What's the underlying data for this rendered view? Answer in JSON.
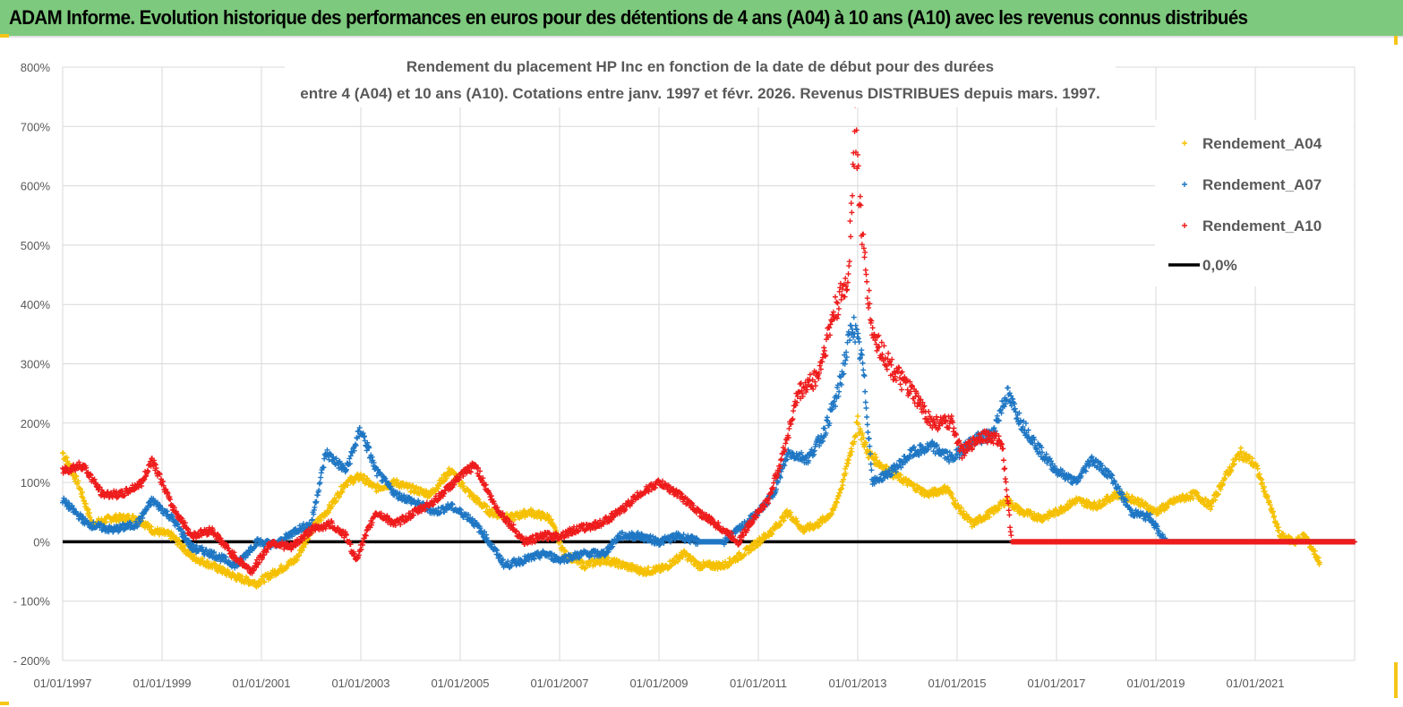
{
  "header": {
    "title": "ADAM Informe. Evolution historique des performances en euros pour des détentions de 4 ans (A04) à 10 ans (A10) avec les revenus connus distribués"
  },
  "chart_data": {
    "type": "scatter",
    "title_line1": "Rendement du placement HP Inc en fonction de la date de début pour des durées",
    "title_line2": "entre 4 (A04) et 10 ans (A10). Cotations entre janv. 1997 et févr. 2026. Revenus DISTRIBUES depuis mars. 1997.",
    "xlabel": "",
    "ylabel": "",
    "xlim": [
      1997,
      2023
    ],
    "ylim": [
      -200,
      800
    ],
    "grid": true,
    "legend": "top-right",
    "x_ticks": [
      "01/01/1997",
      "01/01/1999",
      "01/01/2001",
      "01/01/2003",
      "01/01/2005",
      "01/01/2007",
      "01/01/2009",
      "01/01/2011",
      "01/01/2013",
      "01/01/2015",
      "01/01/2017",
      "01/01/2019",
      "01/01/2021"
    ],
    "y_ticks": [
      "800%",
      "700%",
      "600%",
      "500%",
      "400%",
      "300%",
      "200%",
      "100%",
      "0%",
      "- 100%",
      "- 200%"
    ],
    "series": [
      {
        "name": "Rendement_A04",
        "color": "#f5c000",
        "points": [
          [
            1997.0,
            150
          ],
          [
            1997.3,
            100
          ],
          [
            1997.6,
            30
          ],
          [
            1998.0,
            40
          ],
          [
            1998.5,
            40
          ],
          [
            1998.8,
            20
          ],
          [
            1999.2,
            10
          ],
          [
            1999.6,
            -25
          ],
          [
            2000.0,
            -40
          ],
          [
            2000.5,
            -60
          ],
          [
            2000.9,
            -70
          ],
          [
            2001.3,
            -50
          ],
          [
            2001.7,
            -30
          ],
          [
            2002.0,
            20
          ],
          [
            2002.4,
            60
          ],
          [
            2002.7,
            100
          ],
          [
            2003.0,
            110
          ],
          [
            2003.3,
            90
          ],
          [
            2003.7,
            100
          ],
          [
            2004.0,
            90
          ],
          [
            2004.4,
            80
          ],
          [
            2004.8,
            120
          ],
          [
            2005.2,
            80
          ],
          [
            2005.6,
            50
          ],
          [
            2006.0,
            40
          ],
          [
            2006.4,
            50
          ],
          [
            2006.8,
            40
          ],
          [
            2007.1,
            -20
          ],
          [
            2007.5,
            -40
          ],
          [
            2007.9,
            -30
          ],
          [
            2008.3,
            -40
          ],
          [
            2008.7,
            -50
          ],
          [
            2009.1,
            -45
          ],
          [
            2009.5,
            -20
          ],
          [
            2009.8,
            -40
          ],
          [
            2010.3,
            -40
          ],
          [
            2010.7,
            -20
          ],
          [
            2011.0,
            0
          ],
          [
            2011.3,
            20
          ],
          [
            2011.6,
            50
          ],
          [
            2011.9,
            20
          ],
          [
            2012.2,
            30
          ],
          [
            2012.5,
            50
          ],
          [
            2012.7,
            100
          ],
          [
            2013.0,
            200
          ],
          [
            2013.2,
            150
          ],
          [
            2013.6,
            120
          ],
          [
            2014.0,
            100
          ],
          [
            2014.4,
            80
          ],
          [
            2014.8,
            90
          ],
          [
            2015.0,
            60
          ],
          [
            2015.3,
            30
          ],
          [
            2015.7,
            50
          ],
          [
            2016.0,
            70
          ],
          [
            2016.3,
            50
          ],
          [
            2016.7,
            40
          ],
          [
            2017.0,
            50
          ],
          [
            2017.4,
            70
          ],
          [
            2017.8,
            60
          ],
          [
            2018.2,
            80
          ],
          [
            2018.6,
            70
          ],
          [
            2019.0,
            50
          ],
          [
            2019.4,
            70
          ],
          [
            2019.8,
            80
          ],
          [
            2020.1,
            60
          ],
          [
            2020.4,
            110
          ],
          [
            2020.7,
            150
          ],
          [
            2021.0,
            130
          ],
          [
            2021.3,
            60
          ],
          [
            2021.5,
            10
          ],
          [
            2021.8,
            0
          ],
          [
            2022.0,
            10
          ],
          [
            2022.3,
            -35
          ]
        ]
      },
      {
        "name": "Rendement_A07",
        "color": "#1f77c4",
        "points": [
          [
            1997.0,
            70
          ],
          [
            1997.5,
            30
          ],
          [
            1998.0,
            20
          ],
          [
            1998.5,
            30
          ],
          [
            1998.8,
            70
          ],
          [
            1999.2,
            40
          ],
          [
            1999.6,
            -10
          ],
          [
            2000.0,
            -20
          ],
          [
            2000.5,
            -40
          ],
          [
            2000.9,
            0
          ],
          [
            2001.3,
            -5
          ],
          [
            2001.7,
            20
          ],
          [
            2002.0,
            30
          ],
          [
            2002.3,
            150
          ],
          [
            2002.7,
            120
          ],
          [
            2003.0,
            190
          ],
          [
            2003.3,
            120
          ],
          [
            2003.7,
            80
          ],
          [
            2004.0,
            70
          ],
          [
            2004.5,
            50
          ],
          [
            2004.8,
            60
          ],
          [
            2005.2,
            40
          ],
          [
            2005.5,
            10
          ],
          [
            2005.9,
            -40
          ],
          [
            2006.3,
            -30
          ],
          [
            2006.7,
            -20
          ],
          [
            2007.0,
            -30
          ],
          [
            2007.5,
            -20
          ],
          [
            2007.9,
            -20
          ],
          [
            2008.2,
            10
          ],
          [
            2008.6,
            10
          ],
          [
            2009.0,
            0
          ],
          [
            2009.4,
            10
          ],
          [
            2009.8,
            0
          ],
          [
            2010.3,
            0
          ],
          [
            2010.6,
            20
          ],
          [
            2011.0,
            50
          ],
          [
            2011.3,
            80
          ],
          [
            2011.6,
            150
          ],
          [
            2012.0,
            140
          ],
          [
            2012.3,
            180
          ],
          [
            2012.6,
            250
          ],
          [
            2012.9,
            370
          ],
          [
            2013.1,
            300
          ],
          [
            2013.3,
            100
          ],
          [
            2013.7,
            120
          ],
          [
            2014.1,
            150
          ],
          [
            2014.5,
            160
          ],
          [
            2014.9,
            140
          ],
          [
            2015.3,
            170
          ],
          [
            2015.7,
            180
          ],
          [
            2016.0,
            250
          ],
          [
            2016.3,
            200
          ],
          [
            2016.7,
            150
          ],
          [
            2017.0,
            120
          ],
          [
            2017.4,
            100
          ],
          [
            2017.7,
            140
          ],
          [
            2018.1,
            110
          ],
          [
            2018.5,
            50
          ],
          [
            2018.9,
            40
          ],
          [
            2019.1,
            10
          ],
          [
            2019.2,
            0
          ],
          [
            2023.0,
            0
          ]
        ]
      },
      {
        "name": "Rendement_A10",
        "color": "#ee1c1c",
        "points": [
          [
            1997.0,
            120
          ],
          [
            1997.4,
            130
          ],
          [
            1997.8,
            80
          ],
          [
            1998.2,
            80
          ],
          [
            1998.6,
            100
          ],
          [
            1998.8,
            140
          ],
          [
            1999.2,
            60
          ],
          [
            1999.6,
            10
          ],
          [
            2000.0,
            20
          ],
          [
            2000.4,
            -20
          ],
          [
            2000.8,
            -50
          ],
          [
            2001.2,
            0
          ],
          [
            2001.6,
            -10
          ],
          [
            2002.0,
            20
          ],
          [
            2002.4,
            30
          ],
          [
            2002.7,
            10
          ],
          [
            2002.9,
            -30
          ],
          [
            2003.3,
            50
          ],
          [
            2003.7,
            30
          ],
          [
            2004.1,
            50
          ],
          [
            2004.5,
            70
          ],
          [
            2005.0,
            110
          ],
          [
            2005.3,
            130
          ],
          [
            2005.7,
            60
          ],
          [
            2006.0,
            30
          ],
          [
            2006.3,
            0
          ],
          [
            2006.7,
            10
          ],
          [
            2007.0,
            10
          ],
          [
            2007.3,
            20
          ],
          [
            2007.8,
            30
          ],
          [
            2008.2,
            50
          ],
          [
            2008.6,
            80
          ],
          [
            2009.0,
            100
          ],
          [
            2009.4,
            80
          ],
          [
            2009.8,
            50
          ],
          [
            2010.3,
            20
          ],
          [
            2010.6,
            0
          ],
          [
            2010.9,
            40
          ],
          [
            2011.2,
            70
          ],
          [
            2011.5,
            150
          ],
          [
            2011.8,
            250
          ],
          [
            2012.2,
            280
          ],
          [
            2012.5,
            380
          ],
          [
            2012.8,
            440
          ],
          [
            2012.95,
            700
          ],
          [
            2013.1,
            500
          ],
          [
            2013.3,
            350
          ],
          [
            2013.7,
            290
          ],
          [
            2014.1,
            250
          ],
          [
            2014.5,
            200
          ],
          [
            2014.9,
            200
          ],
          [
            2015.1,
            150
          ],
          [
            2015.5,
            180
          ],
          [
            2015.9,
            170
          ],
          [
            2016.1,
            0
          ],
          [
            2023.0,
            0
          ]
        ]
      }
    ],
    "zero_line": {
      "name": "0,0%",
      "color": "#000000",
      "x_range": [
        1997,
        2016.15
      ],
      "value": 0
    }
  }
}
